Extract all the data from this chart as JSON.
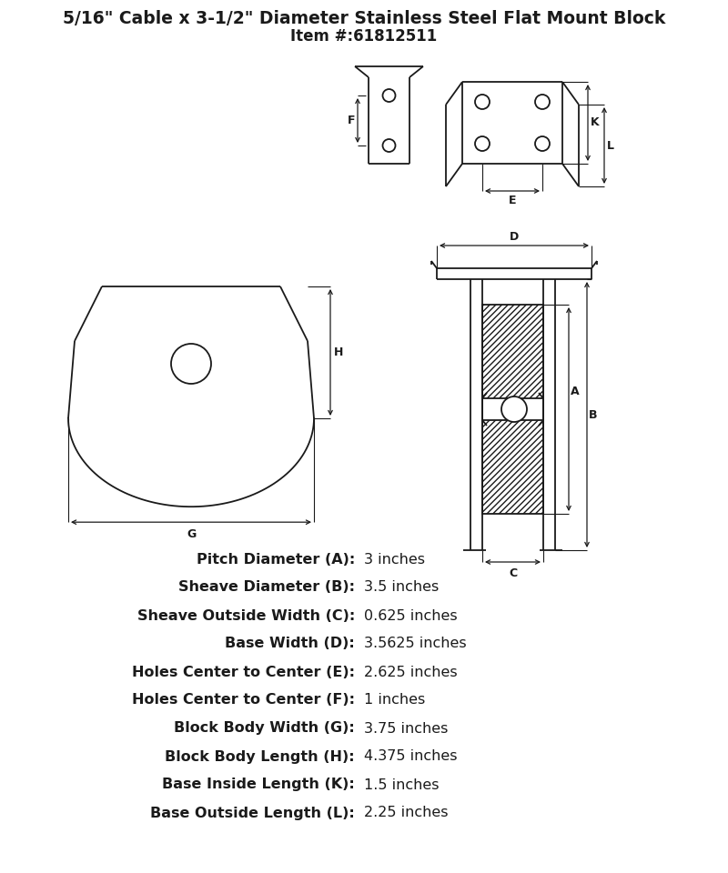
{
  "title_line1": "5/16\" Cable x 3-1/2\" Diameter Stainless Steel Flat Mount Block",
  "title_line2": "Item #:61812511",
  "bg_color": "#ffffff",
  "line_color": "#1a1a1a",
  "specs": [
    {
      "label": "Pitch Diameter (A):",
      "value": "3 inches"
    },
    {
      "label": "Sheave Diameter (B):",
      "value": "3.5 inches"
    },
    {
      "label": "Sheave Outside Width (C):",
      "value": "0.625 inches"
    },
    {
      "label": "Base Width (D):",
      "value": "3.5625 inches"
    },
    {
      "label": "Holes Center to Center (E):",
      "value": "2.625 inches"
    },
    {
      "label": "Holes Center to Center (F):",
      "value": "1 inches"
    },
    {
      "label": "Block Body Width (G):",
      "value": "3.75 inches"
    },
    {
      "label": "Block Body Length (H):",
      "value": "4.375 inches"
    },
    {
      "label": "Base Inside Length (K):",
      "value": "1.5 inches"
    },
    {
      "label": "Base Outside Length (L):",
      "value": "2.25 inches"
    }
  ]
}
